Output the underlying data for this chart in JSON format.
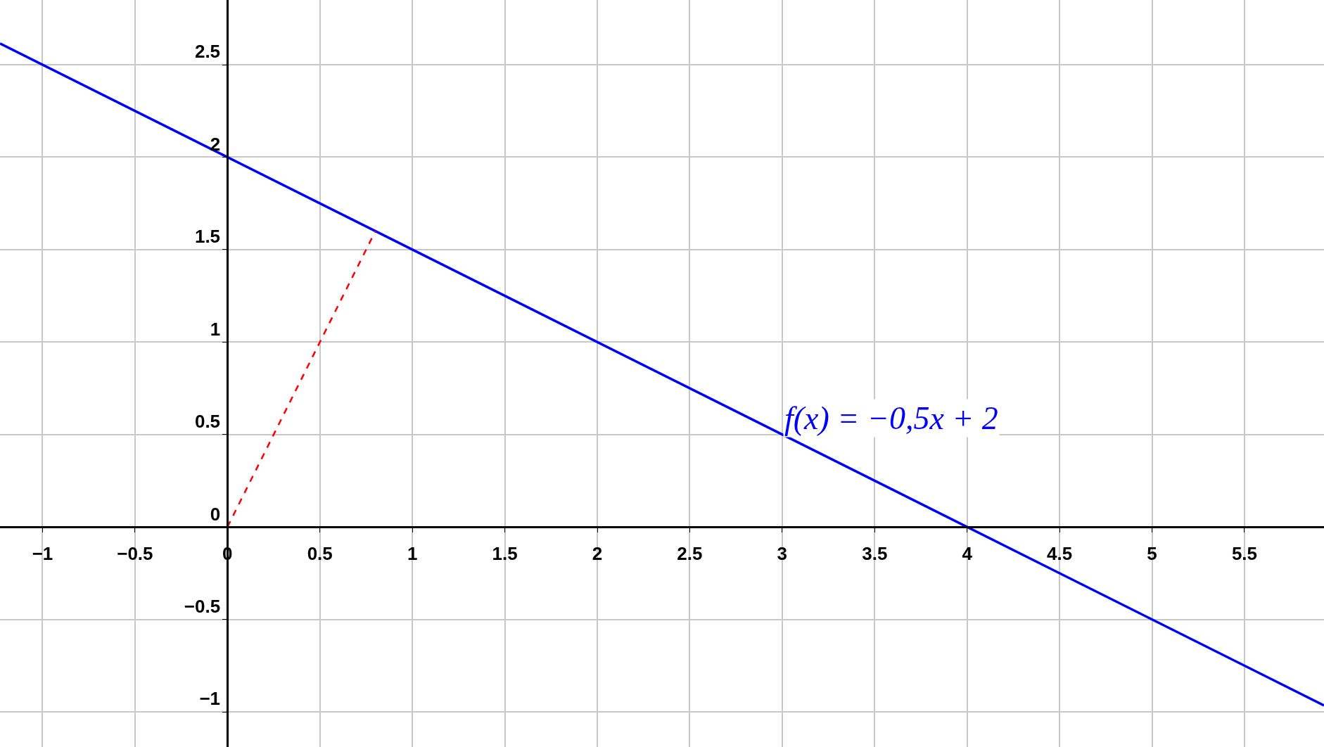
{
  "chart_data": {
    "type": "line",
    "series": [
      {
        "name": "f(x) = −0,5x + 2",
        "color": "#0000ff",
        "x": [
          -1.23,
          5.93
        ],
        "values": [
          2.615,
          -0.965
        ],
        "line_style": "solid"
      },
      {
        "color": "#ff0000",
        "x": [
          0,
          0.8
        ],
        "values": [
          0,
          1.6
        ],
        "line_style": "dashed"
      }
    ],
    "xlim": [
      -1.23,
      5.93
    ],
    "ylim": [
      -1.19,
      2.85
    ],
    "xticks": [
      {
        "value": -1,
        "label": "−1"
      },
      {
        "value": -0.5,
        "label": "−0.5"
      },
      0,
      0.5,
      1,
      1.5,
      2,
      2.5,
      3,
      3.5,
      4,
      4.5,
      5,
      5.5
    ],
    "yticks": [
      {
        "value": -1,
        "label": "−1"
      },
      {
        "value": -0.5,
        "label": "−0.5"
      },
      0,
      0.5,
      1,
      1.5,
      2,
      2.5
    ],
    "grid": true,
    "marker": "none",
    "legend": false
  }
}
